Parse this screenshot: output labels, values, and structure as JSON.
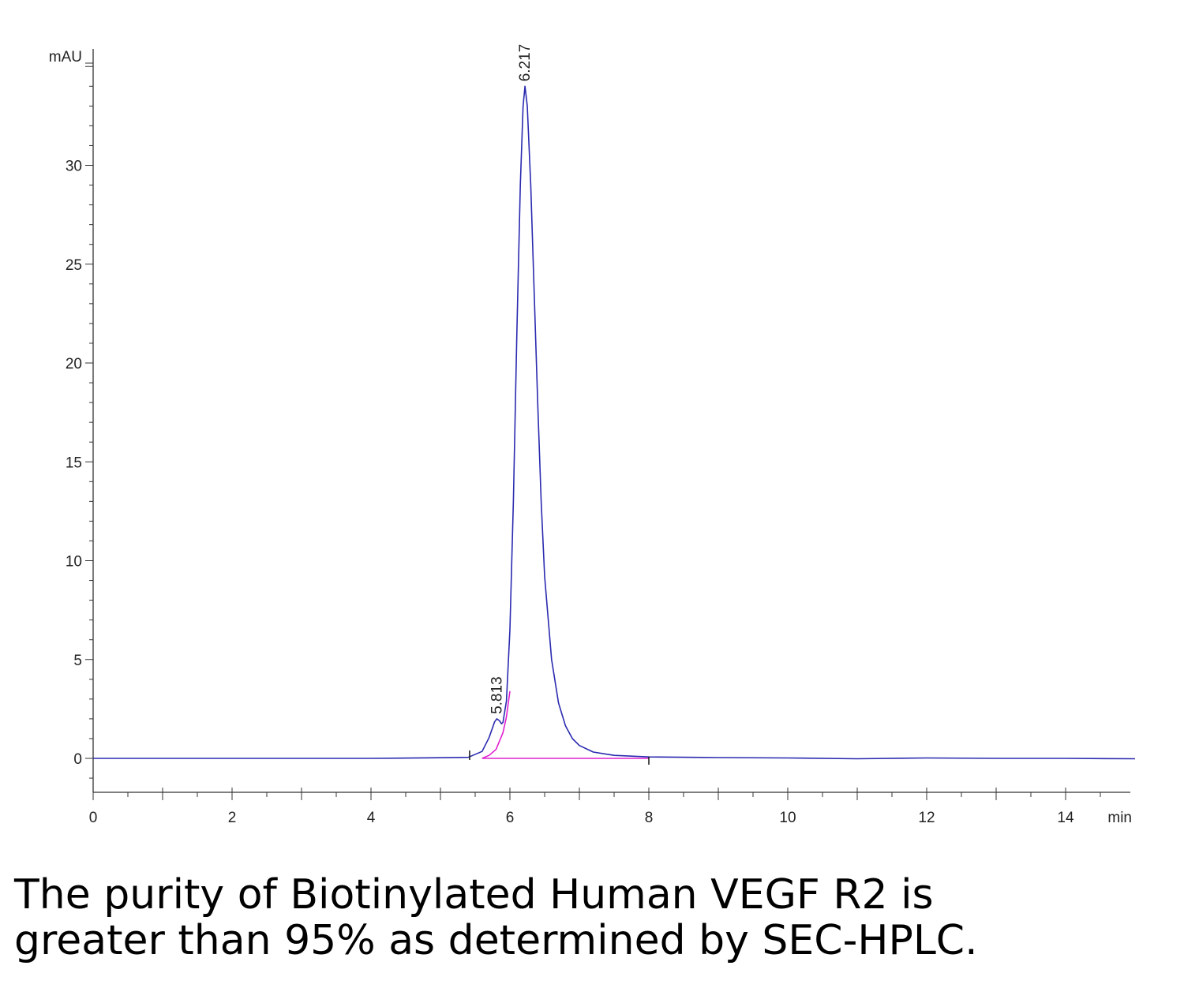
{
  "chart_data": {
    "type": "line",
    "title": "",
    "xlabel": "min",
    "ylabel": "mAU",
    "xlim": [
      0,
      15
    ],
    "ylim": [
      -1.7,
      36
    ],
    "x_ticks": [
      "0",
      "2",
      "4",
      "6",
      "8",
      "10",
      "12",
      "14"
    ],
    "y_ticks": [
      "0",
      "5",
      "10",
      "15",
      "20",
      "25",
      "30"
    ],
    "series": [
      {
        "color": "#2a2ab0",
        "x": [
          0,
          4.0,
          5.0,
          5.4,
          5.6,
          5.7,
          5.75,
          5.78,
          5.813,
          5.85,
          5.88,
          5.9,
          5.95,
          6.0,
          6.05,
          6.1,
          6.15,
          6.19,
          6.217,
          6.25,
          6.3,
          6.35,
          6.4,
          6.45,
          6.5,
          6.6,
          6.7,
          6.8,
          6.9,
          7.0,
          7.2,
          7.5,
          8.0,
          9.0,
          10.0,
          11.0,
          12.0,
          13.0,
          14.0,
          15.0
        ],
        "y": [
          0.0,
          0.0,
          0.03,
          0.05,
          0.35,
          1.05,
          1.55,
          1.85,
          2.0,
          1.9,
          1.75,
          1.82,
          2.9,
          6.5,
          13.0,
          21.5,
          29.0,
          33.0,
          34.0,
          33.0,
          29.0,
          23.5,
          18.0,
          13.0,
          9.2,
          5.0,
          2.8,
          1.65,
          1.0,
          0.65,
          0.32,
          0.15,
          0.07,
          0.04,
          0.02,
          -0.02,
          0.02,
          0.0,
          0.0,
          -0.02
        ]
      },
      {
        "color": "#e020d0",
        "x": [
          5.6,
          5.7,
          5.8,
          5.9,
          5.95,
          6.0
        ],
        "y": [
          0.0,
          0.15,
          0.45,
          1.3,
          2.1,
          3.4
        ]
      },
      {
        "color": "#e020d0",
        "x": [
          5.6,
          8.0
        ],
        "y": [
          0.0,
          0.0
        ]
      }
    ],
    "peak_labels": [
      {
        "x": 5.813,
        "y": 2.0,
        "label": "5.813"
      },
      {
        "x": 6.217,
        "y": 34.0,
        "label": "6.217"
      }
    ],
    "grid": false,
    "legend": "none"
  },
  "caption": {
    "line1": "The purity of Biotinylated Human VEGF R2 is",
    "line2": "greater than 95% as determined by SEC-HPLC."
  }
}
